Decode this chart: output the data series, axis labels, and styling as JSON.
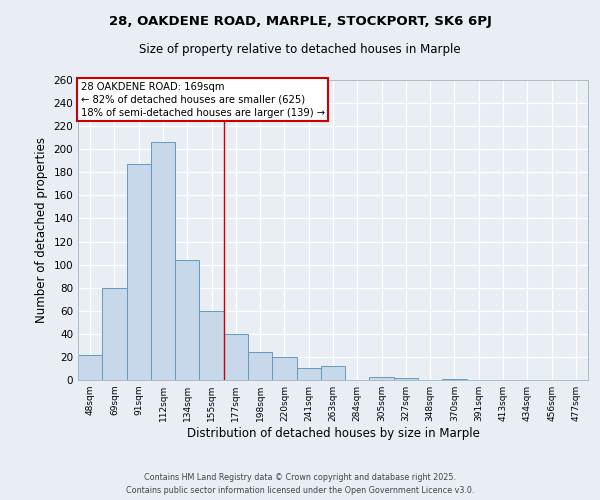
{
  "title1": "28, OAKDENE ROAD, MARPLE, STOCKPORT, SK6 6PJ",
  "title2": "Size of property relative to detached houses in Marple",
  "xlabel": "Distribution of detached houses by size in Marple",
  "ylabel": "Number of detached properties",
  "bar_color": "#c8d8eb",
  "bar_edge_color": "#6699bb",
  "categories": [
    "48sqm",
    "69sqm",
    "91sqm",
    "112sqm",
    "134sqm",
    "155sqm",
    "177sqm",
    "198sqm",
    "220sqm",
    "241sqm",
    "263sqm",
    "284sqm",
    "305sqm",
    "327sqm",
    "348sqm",
    "370sqm",
    "391sqm",
    "413sqm",
    "434sqm",
    "456sqm",
    "477sqm"
  ],
  "values": [
    22,
    80,
    187,
    206,
    104,
    60,
    40,
    24,
    20,
    10,
    12,
    0,
    3,
    2,
    0,
    1,
    0,
    0,
    0,
    0,
    0
  ],
  "ylim": [
    0,
    260
  ],
  "yticks": [
    0,
    20,
    40,
    60,
    80,
    100,
    120,
    140,
    160,
    180,
    200,
    220,
    240,
    260
  ],
  "property_line_x": 5.5,
  "annotation_title": "28 OAKDENE ROAD: 169sqm",
  "annotation_line1": "← 82% of detached houses are smaller (625)",
  "annotation_line2": "18% of semi-detached houses are larger (139) →",
  "annotation_box_color": "#ffffff",
  "annotation_box_edge": "#cc0000",
  "vline_color": "#cc0000",
  "background_color": "#e8eef4",
  "grid_color": "#ffffff",
  "footer1": "Contains HM Land Registry data © Crown copyright and database right 2025.",
  "footer2": "Contains public sector information licensed under the Open Government Licence v3.0."
}
